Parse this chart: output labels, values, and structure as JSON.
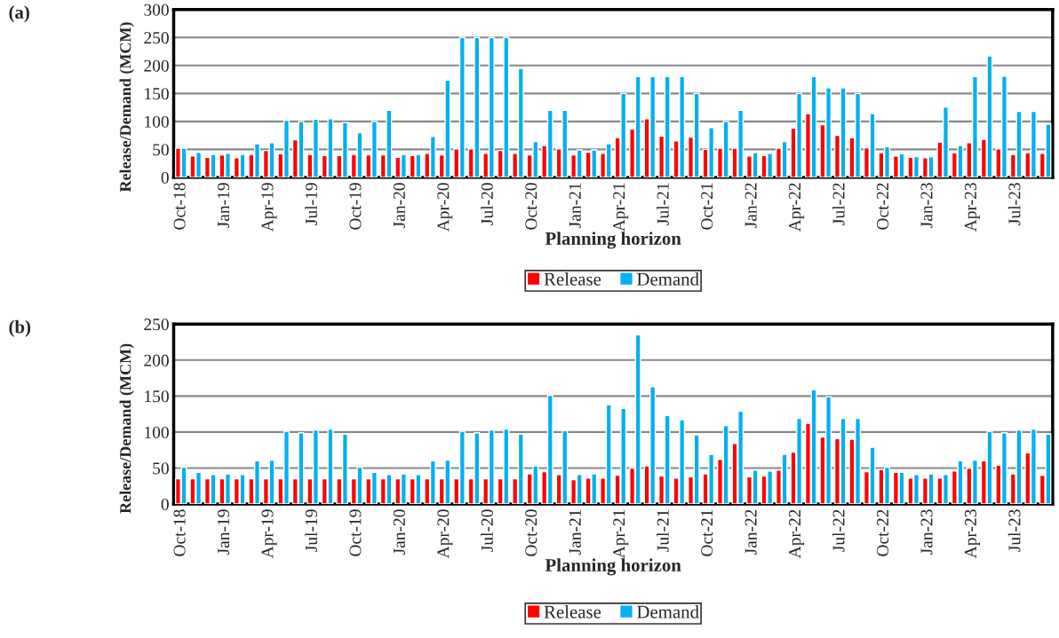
{
  "chart_data": [
    {
      "type": "bar",
      "annotations": [
        "(a)"
      ],
      "xlabel": "Planning horizon",
      "ylabel": "Release/Demand (MCM)",
      "categories": [
        "Oct-18",
        null,
        null,
        "Jan-19",
        null,
        null,
        "Apr-19",
        null,
        null,
        "Jul-19",
        null,
        null,
        "Oct-19",
        null,
        null,
        "Jan-20",
        null,
        null,
        "Apr-20",
        null,
        null,
        "Jul-20",
        null,
        null,
        "Oct-20",
        null,
        null,
        "Jan-21",
        null,
        null,
        "Apr-21",
        null,
        null,
        "Jul-21",
        null,
        null,
        "Oct-21",
        null,
        null,
        "Jan-22",
        null,
        null,
        "Apr-22",
        null,
        null,
        "Jul-22",
        null,
        null,
        "Oct-22",
        null,
        null,
        "Jan-23",
        null,
        null,
        "Apr-23",
        null,
        null,
        "Jul-23",
        null,
        null
      ],
      "series": [
        {
          "name": "Release",
          "color": "#ff0000",
          "values": [
            52,
            38,
            36,
            40,
            35,
            41,
            48,
            42,
            67,
            41,
            39,
            39,
            41,
            40,
            40,
            36,
            39,
            43,
            40,
            51,
            51,
            43,
            48,
            43,
            40,
            57,
            51,
            40,
            45,
            43,
            71,
            86,
            105,
            74,
            65,
            72,
            50,
            52,
            52,
            38,
            39,
            52,
            88,
            114,
            94,
            75,
            71,
            53,
            44,
            38,
            36,
            35,
            63,
            44,
            62,
            68,
            51,
            41,
            44,
            43
          ]
        },
        {
          "name": "Demand",
          "color": "#00b0f0",
          "values": [
            52,
            45,
            41,
            43,
            41,
            60,
            62,
            102,
            100,
            104,
            105,
            98,
            80,
            100,
            120,
            41,
            41,
            73,
            174,
            250,
            250,
            250,
            250,
            195,
            64,
            120,
            120,
            49,
            49,
            60,
            150,
            180,
            180,
            180,
            180,
            150,
            89,
            100,
            120,
            44,
            43,
            64,
            150,
            180,
            160,
            160,
            150,
            114,
            55,
            42,
            37,
            37,
            126,
            57,
            180,
            217,
            181,
            118,
            118,
            95
          ]
        }
      ],
      "ylim": [
        0,
        300
      ],
      "yticks": [
        0,
        50,
        100,
        150,
        200,
        250,
        300
      ],
      "grid": "y",
      "legend": "bottom"
    },
    {
      "type": "bar",
      "annotations": [
        "(b)"
      ],
      "xlabel": "Planning horizon",
      "ylabel": "Release/Demand (MCM)",
      "categories": [
        "Oct-18",
        null,
        null,
        "Jan-19",
        null,
        null,
        "Apr-19",
        null,
        null,
        "Jul-19",
        null,
        null,
        "Oct-19",
        null,
        null,
        "Jan-20",
        null,
        null,
        "Apr-20",
        null,
        null,
        "Jul-20",
        null,
        null,
        "Oct-20",
        null,
        null,
        "Jan-21",
        null,
        null,
        "Apr-21",
        null,
        null,
        "Jul-21",
        null,
        null,
        "Oct-21",
        null,
        null,
        "Jan-22",
        null,
        null,
        "Apr-22",
        null,
        null,
        "Jul-22",
        null,
        null,
        "Oct-22",
        null,
        null,
        "Jan-23",
        null,
        null,
        "Apr-23",
        null,
        null,
        "Jul-23",
        null,
        null
      ],
      "series": [
        {
          "name": "Release",
          "color": "#ff0000",
          "values": [
            35,
            35,
            35,
            35,
            35,
            35,
            35,
            35,
            35,
            35,
            35,
            35,
            35,
            35,
            35,
            35,
            35,
            35,
            35,
            35,
            35,
            35,
            35,
            35,
            42,
            45,
            41,
            34,
            36,
            36,
            40,
            50,
            53,
            39,
            36,
            38,
            42,
            62,
            84,
            38,
            39,
            47,
            72,
            112,
            93,
            91,
            90,
            45,
            48,
            44,
            36,
            36,
            36,
            46,
            50,
            60,
            54,
            42,
            71,
            40
          ]
        },
        {
          "name": "Demand",
          "color": "#00b0f0",
          "values": [
            51,
            44,
            41,
            42,
            41,
            60,
            61,
            101,
            99,
            103,
            104,
            97,
            51,
            44,
            41,
            42,
            41,
            60,
            61,
            101,
            99,
            103,
            104,
            97,
            53,
            151,
            102,
            41,
            42,
            138,
            133,
            235,
            163,
            123,
            117,
            96,
            69,
            109,
            129,
            47,
            46,
            69,
            119,
            159,
            149,
            119,
            119,
            79,
            51,
            44,
            41,
            42,
            41,
            60,
            61,
            101,
            99,
            103,
            104,
            97
          ]
        }
      ],
      "ylim": [
        0,
        250
      ],
      "yticks": [
        0,
        50,
        100,
        150,
        200,
        250
      ],
      "grid": "y",
      "legend": "bottom"
    }
  ]
}
